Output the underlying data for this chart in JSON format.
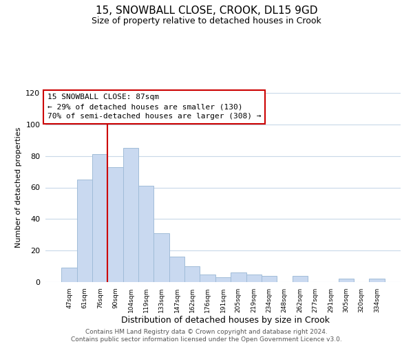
{
  "title": "15, SNOWBALL CLOSE, CROOK, DL15 9GD",
  "subtitle": "Size of property relative to detached houses in Crook",
  "xlabel": "Distribution of detached houses by size in Crook",
  "ylabel": "Number of detached properties",
  "bar_labels": [
    "47sqm",
    "61sqm",
    "76sqm",
    "90sqm",
    "104sqm",
    "119sqm",
    "133sqm",
    "147sqm",
    "162sqm",
    "176sqm",
    "191sqm",
    "205sqm",
    "219sqm",
    "234sqm",
    "248sqm",
    "262sqm",
    "277sqm",
    "291sqm",
    "305sqm",
    "320sqm",
    "334sqm"
  ],
  "bar_values": [
    9,
    65,
    81,
    73,
    85,
    61,
    31,
    16,
    10,
    5,
    3,
    6,
    5,
    4,
    0,
    4,
    0,
    0,
    2,
    0,
    2
  ],
  "bar_color": "#c9d9f0",
  "bar_edge_color": "#a0bcd8",
  "vline_color": "#cc0000",
  "ylim": [
    0,
    120
  ],
  "yticks": [
    0,
    20,
    40,
    60,
    80,
    100,
    120
  ],
  "annotation_title": "15 SNOWBALL CLOSE: 87sqm",
  "annotation_line1": "← 29% of detached houses are smaller (130)",
  "annotation_line2": "70% of semi-detached houses are larger (308) →",
  "annotation_box_color": "#ffffff",
  "annotation_box_edge": "#cc0000",
  "footer_line1": "Contains HM Land Registry data © Crown copyright and database right 2024.",
  "footer_line2": "Contains public sector information licensed under the Open Government Licence v3.0.",
  "bg_color": "#ffffff",
  "grid_color": "#c8d8e8"
}
